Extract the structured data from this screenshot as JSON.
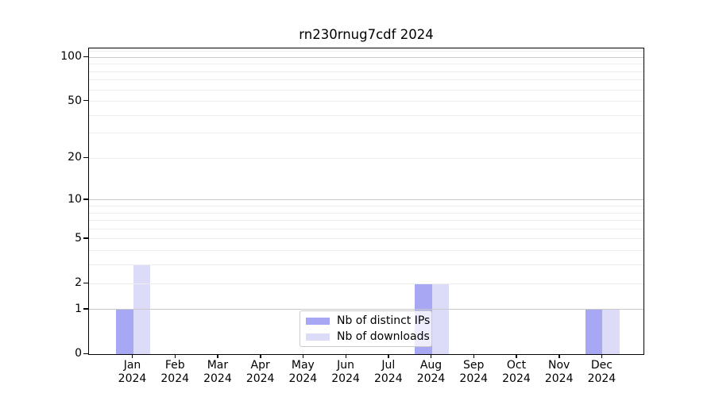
{
  "chart_data": {
    "type": "bar",
    "title": "rn230rnug7cdf 2024",
    "categories": [
      "Jan",
      "Feb",
      "Mar",
      "Apr",
      "May",
      "Jun",
      "Jul",
      "Aug",
      "Sep",
      "Oct",
      "Nov",
      "Dec"
    ],
    "year_label": "2024",
    "series": [
      {
        "name": "Nb of distinct IPs",
        "color": "#a7a7f3",
        "values": [
          1,
          0,
          0,
          0,
          0,
          0,
          0,
          2,
          0,
          0,
          0,
          1
        ]
      },
      {
        "name": "Nb of downloads",
        "color": "#dcdcf8",
        "values": [
          3,
          0,
          0,
          0,
          0,
          0,
          0,
          2,
          0,
          0,
          0,
          1
        ]
      }
    ],
    "yscale": "log1p",
    "ylim": [
      0,
      115
    ],
    "yticks": [
      0,
      1,
      2,
      5,
      10,
      20,
      50,
      100
    ],
    "major_gridlines": [
      1,
      10,
      100
    ],
    "minor_gridlines": [
      2,
      3,
      4,
      5,
      6,
      7,
      8,
      9,
      20,
      30,
      40,
      50,
      60,
      70,
      80,
      90,
      110
    ],
    "grid": true,
    "legend_position": "lower center",
    "axis_color": "#000000",
    "major_grid_color": "#c9c9c9",
    "minor_grid_color": "#ededed"
  }
}
